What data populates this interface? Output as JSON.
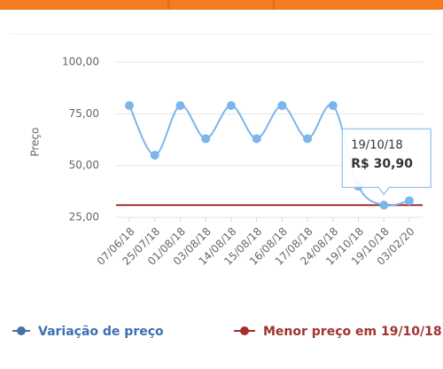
{
  "chart_data": {
    "type": "line",
    "y_label": "Preço",
    "categories": [
      "07/06/18",
      "25/07/18",
      "01/08/18",
      "03/08/18",
      "14/08/18",
      "15/08/18",
      "16/08/18",
      "17/08/18",
      "24/08/18",
      "19/10/18",
      "19/10/18",
      "03/02/20"
    ],
    "series": [
      {
        "name": "Variação de preço",
        "color": "#7cb5ec",
        "values": [
          79,
          55,
          79,
          63,
          79,
          63,
          79,
          63,
          79,
          40,
          30.9,
          33
        ]
      }
    ],
    "min_line": {
      "name": "Menor preço em 19/10/18",
      "color": "#a52f2a",
      "value": 30.9
    },
    "ylim": [
      25,
      100
    ],
    "yticks": [
      {
        "value": 25,
        "label": "25,00"
      },
      {
        "value": 50,
        "label": "50,00"
      },
      {
        "value": 75,
        "label": "75,00"
      },
      {
        "value": 100,
        "label": "100,00"
      }
    ],
    "grid": true,
    "tooltip": {
      "title": "19/10/18",
      "text": "R$ 30,90"
    }
  }
}
